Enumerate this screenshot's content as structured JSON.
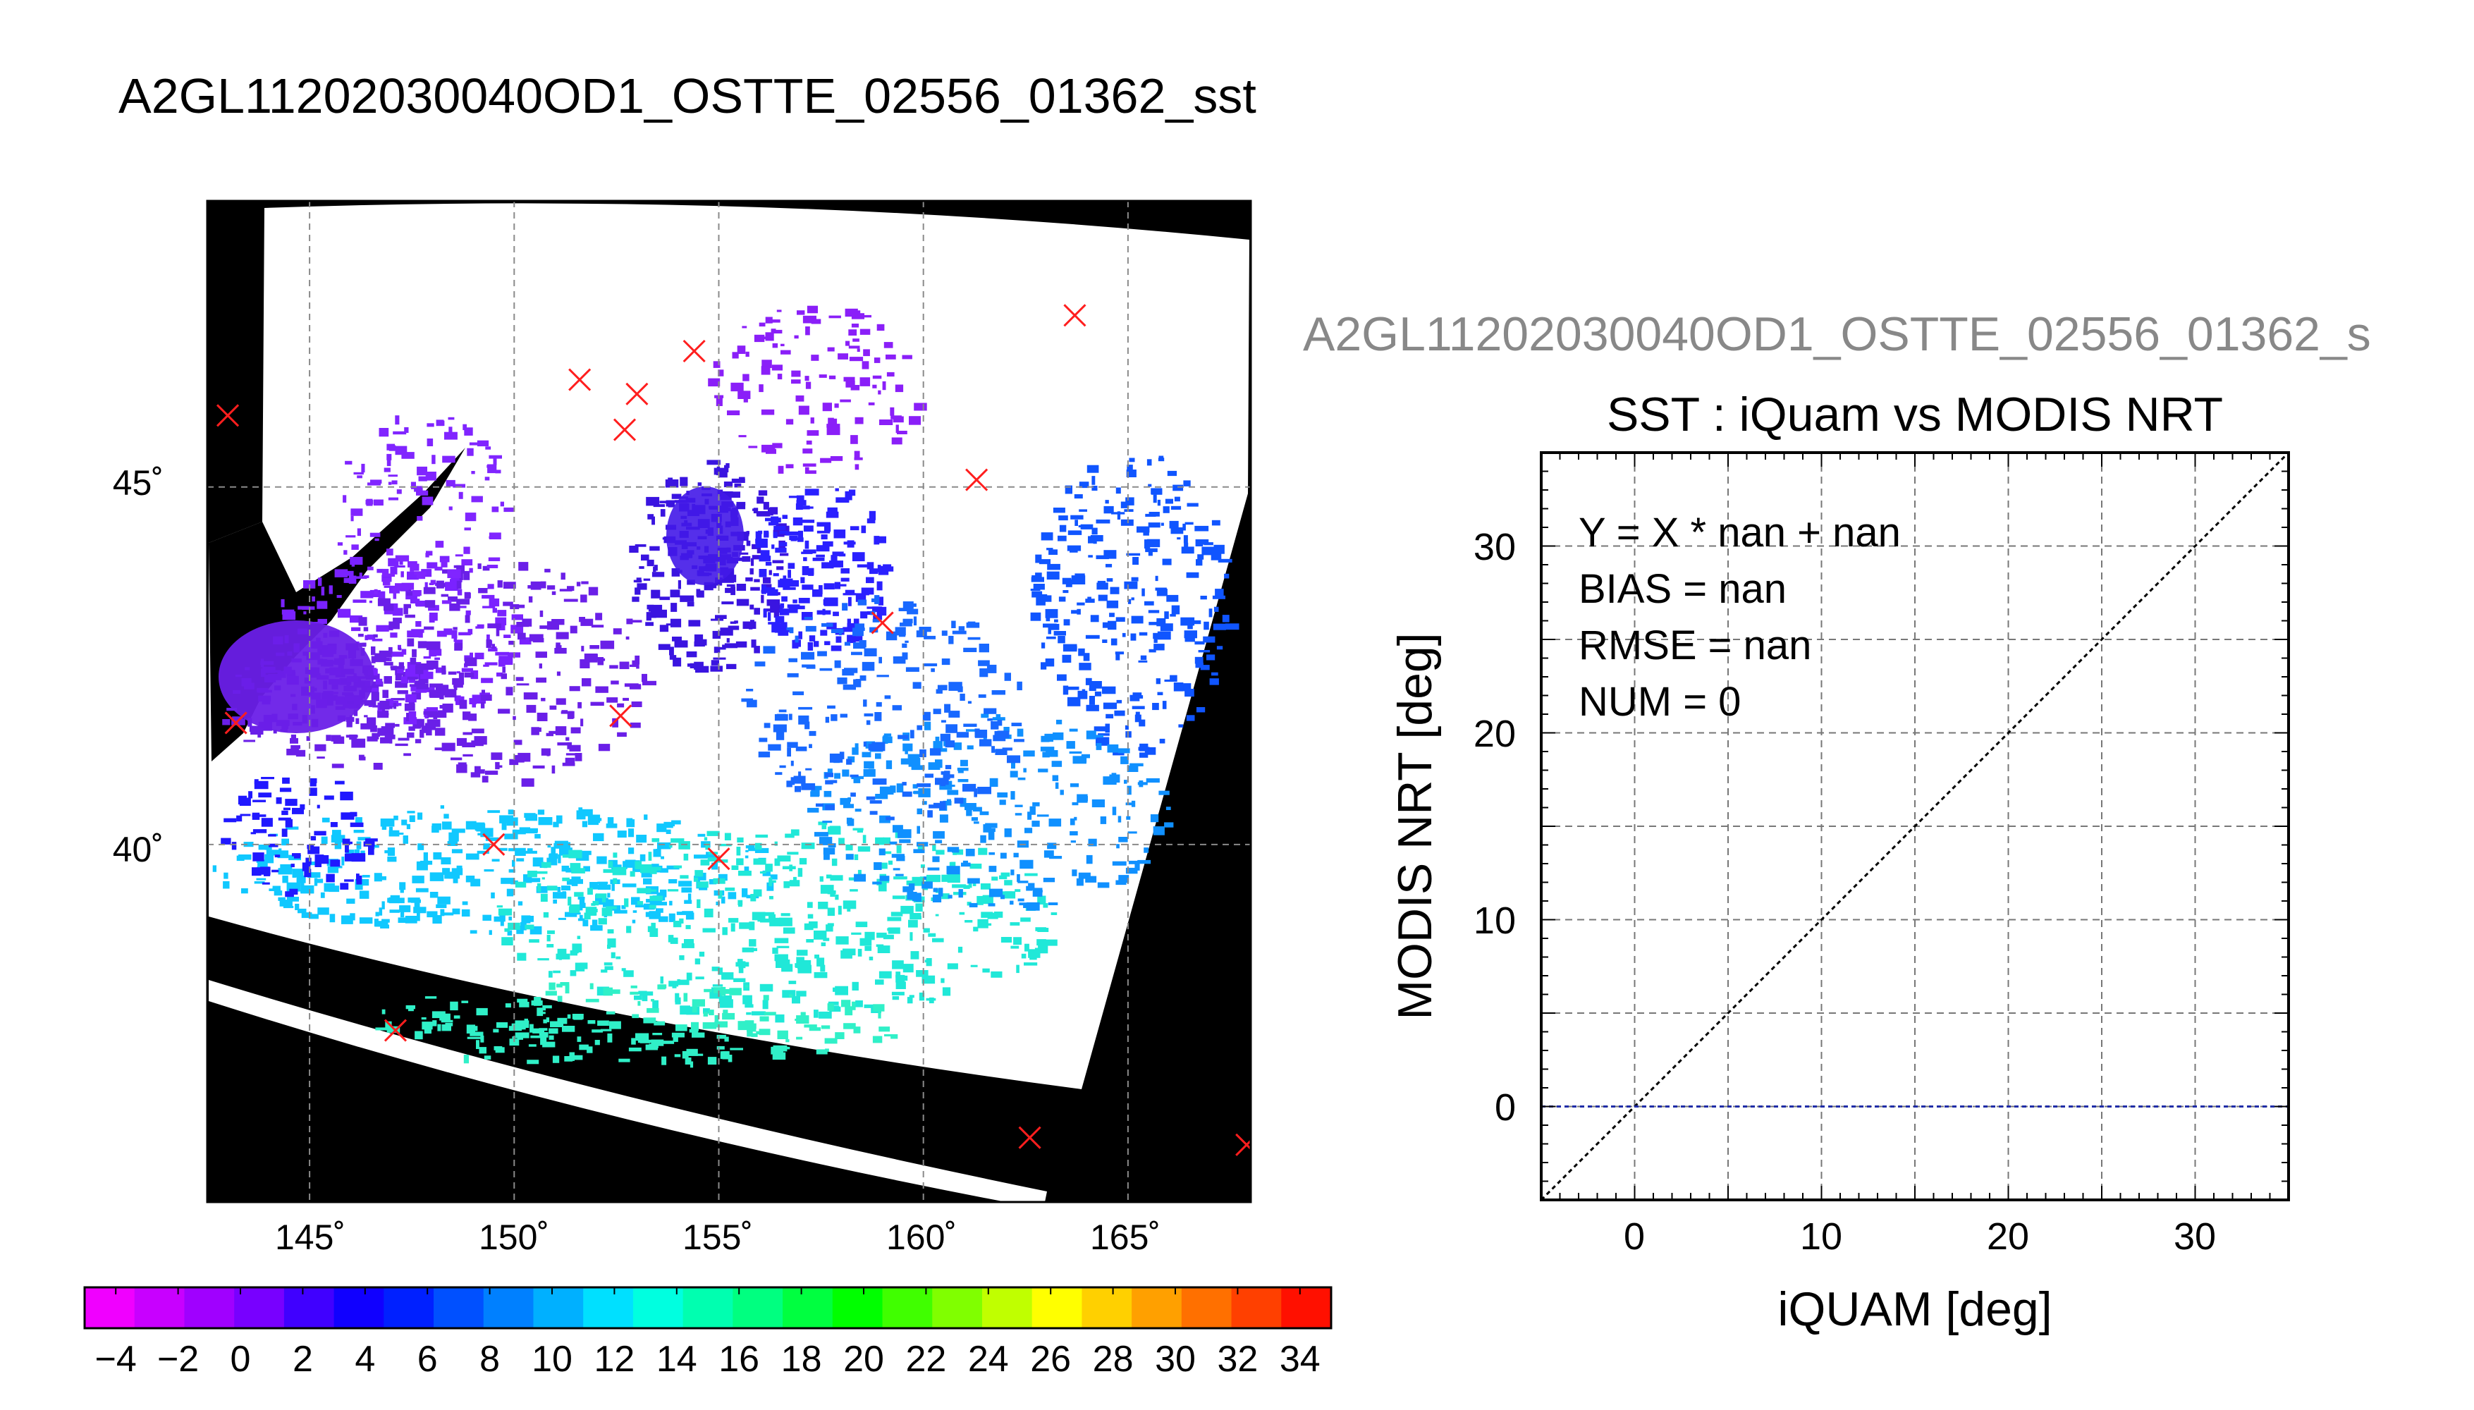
{
  "page_title": "A2GL11202030040OD1_OSTTE_02556_01362_sst",
  "map": {
    "lat_ticks": [
      "45˚",
      "40˚"
    ],
    "lon_ticks": [
      "145˚",
      "150˚",
      "155˚",
      "160˚",
      "165˚"
    ],
    "obs_marker_color": "#ff1e1e",
    "land_color": "#000000",
    "cloud_color": "#ffffff"
  },
  "colorbar": {
    "ticks": [
      "−4",
      "−2",
      "0",
      "2",
      "4",
      "6",
      "8",
      "10",
      "12",
      "14",
      "16",
      "18",
      "20",
      "22",
      "24",
      "26",
      "28",
      "30",
      "32",
      "34"
    ],
    "colors": [
      "#f000ff",
      "#c800ff",
      "#a000ff",
      "#7800ff",
      "#4000ff",
      "#1000ff",
      "#0020ff",
      "#0050ff",
      "#0080ff",
      "#00b0ff",
      "#00e0ff",
      "#00ffe0",
      "#00ffb0",
      "#00ff80",
      "#00ff40",
      "#00ff00",
      "#40ff00",
      "#80ff00",
      "#c0ff00",
      "#ffff00",
      "#ffd000",
      "#ffa000",
      "#ff7000",
      "#ff4000",
      "#ff1000"
    ]
  },
  "scatter": {
    "clipped_title": "A2GL11202030040OD1_OSTTE_02556_01362_s",
    "title": "SST : iQuam vs MODIS NRT",
    "xlabel": "iQUAM [deg]",
    "ylabel": "MODIS NRT [deg]",
    "stats": [
      "Y = X * nan + nan",
      "BIAS = nan",
      "RMSE = nan",
      "NUM = 0"
    ],
    "x_ticks": [
      "0",
      "10",
      "20",
      "30"
    ],
    "y_ticks": [
      "0",
      "10",
      "20",
      "30"
    ]
  },
  "chart_data": [
    {
      "type": "heatmap",
      "title": "A2GL11202030040OD1_OSTTE_02556_01362_sst",
      "xlabel": "",
      "ylabel": "",
      "xlim": [
        142.5,
        168
      ],
      "ylim": [
        35,
        49
      ],
      "lon_ticks": [
        145,
        150,
        155,
        160,
        165
      ],
      "lat_ticks": [
        40,
        45
      ],
      "colorbar_range": [
        -5,
        35
      ],
      "grid": true,
      "obs_markers_lonlat": [
        [
          143,
          46
        ],
        [
          143.2,
          41.7
        ],
        [
          147.1,
          37.4
        ],
        [
          149.5,
          40
        ],
        [
          151.6,
          46.5
        ],
        [
          152.7,
          45.8
        ],
        [
          153,
          46.3
        ],
        [
          154.4,
          46.9
        ],
        [
          152.6,
          41.8
        ],
        [
          155,
          39.8
        ],
        [
          159,
          43.1
        ],
        [
          161.3,
          45.1
        ],
        [
          163.7,
          47.4
        ],
        [
          162.6,
          35.9
        ],
        [
          167.9,
          35.8
        ]
      ]
    },
    {
      "type": "scatter",
      "title": "SST : iQuam vs MODIS NRT",
      "xlabel": "iQUAM [deg]",
      "ylabel": "MODIS NRT [deg]",
      "xlim": [
        -5,
        35
      ],
      "ylim": [
        -5,
        35
      ],
      "grid": true,
      "series": [],
      "reference_lines": [
        {
          "kind": "one-to-one",
          "points": [
            [
              -5,
              -5
            ],
            [
              35,
              35
            ]
          ]
        },
        {
          "kind": "zero-bias",
          "points": [
            [
              -5,
              0
            ],
            [
              35,
              0
            ]
          ]
        }
      ]
    }
  ]
}
